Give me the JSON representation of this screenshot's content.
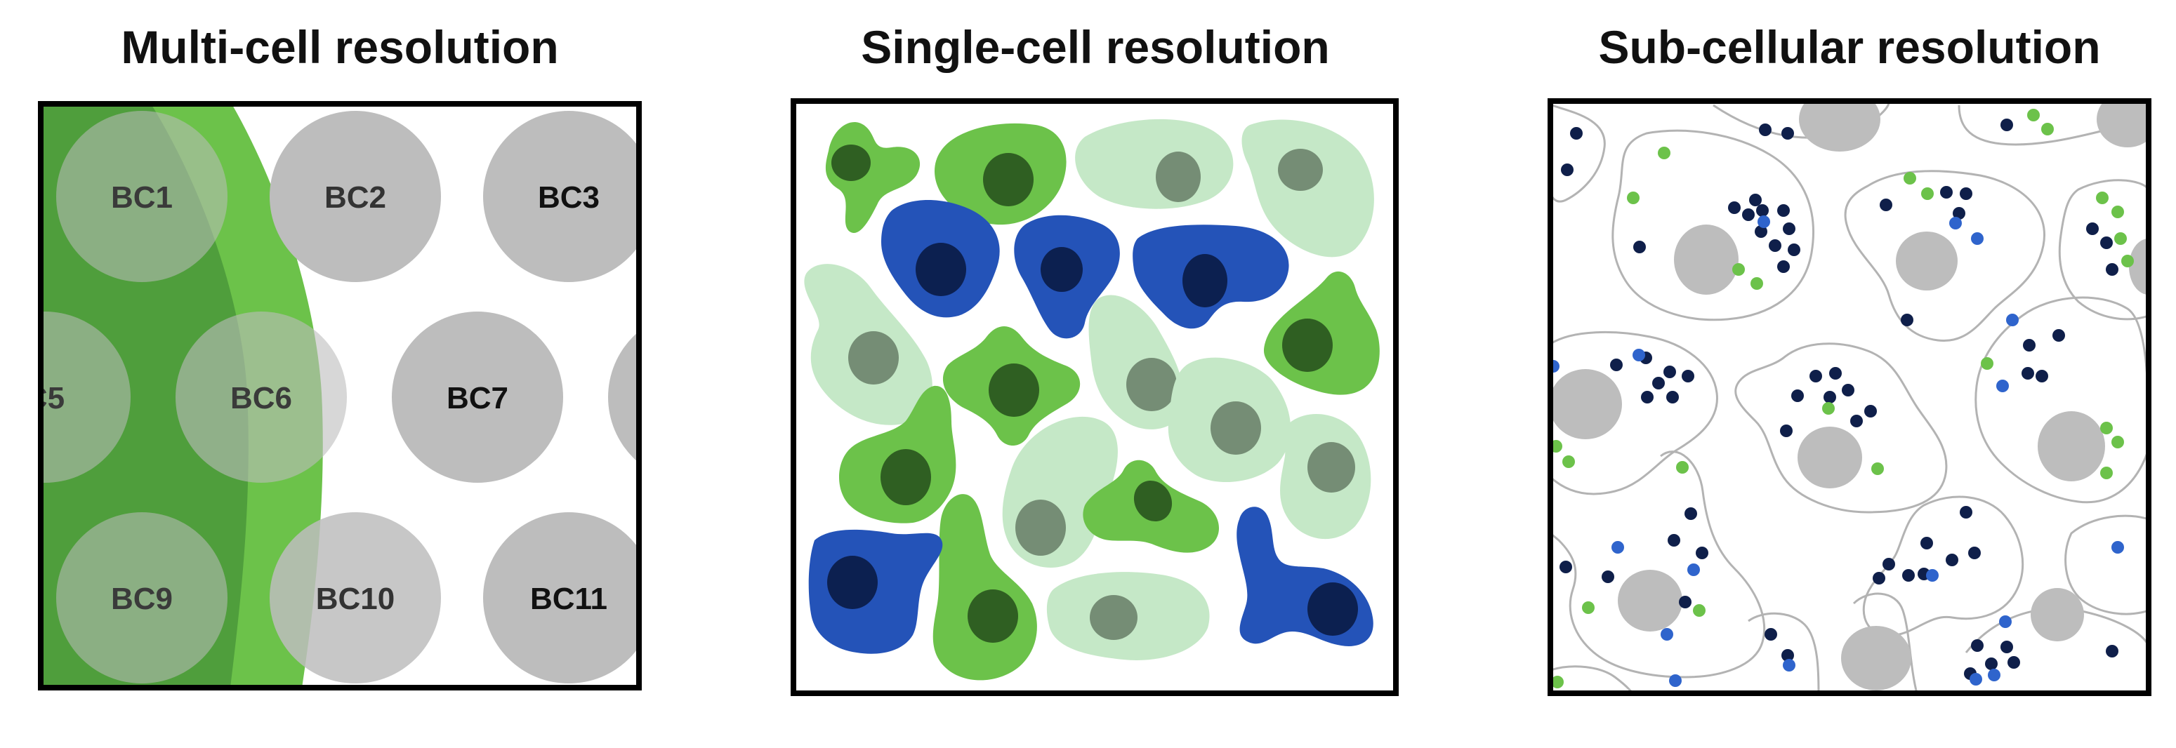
{
  "panels": [
    {
      "title": "Multi-cell resolution",
      "barcodes": [
        "BC1",
        "BC2",
        "BC3",
        "C5",
        "BC6",
        "BC7",
        "BC9",
        "BC10",
        "BC11"
      ]
    },
    {
      "title": "Single-cell resolution"
    },
    {
      "title": "Sub-cellular resolution"
    }
  ],
  "colors": {
    "spot_gray": "#bdbdbd",
    "tissue_dark_green": "#4f9e3c",
    "tissue_light_green": "#6cc24a",
    "cell_green": "#6cc24a",
    "cell_green_nucleus": "#2f5f22",
    "cell_blue": "#2453b8",
    "cell_blue_nucleus": "#0c2050",
    "cell_pale_green": "#c5e8c7",
    "cell_pale_nucleus": "#758d75",
    "transcript_navy": "#0f1f4a",
    "transcript_blue": "#2f64cc",
    "transcript_green": "#6cc24a",
    "outline_gray": "#b3b3b3"
  }
}
